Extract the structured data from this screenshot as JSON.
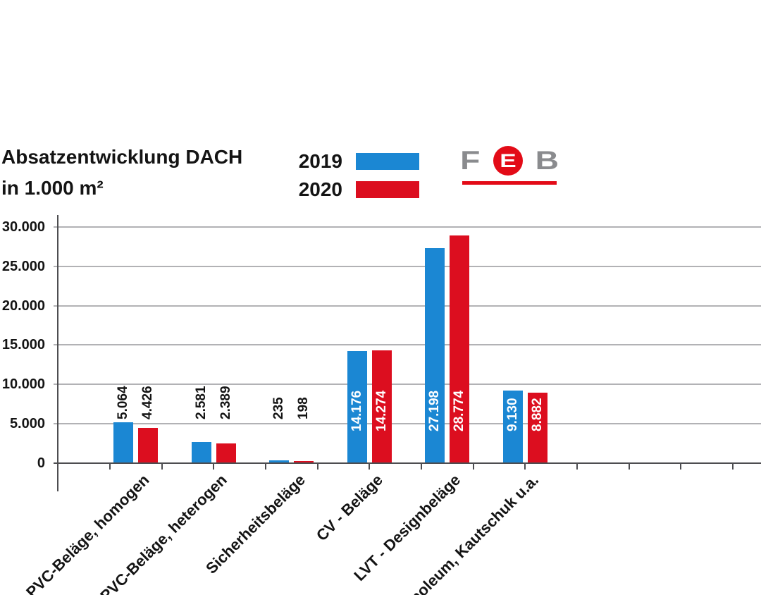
{
  "title": {
    "line1": "Absatzentwicklung DACH",
    "line2": "in 1.000 m²"
  },
  "legend": {
    "items": [
      {
        "label": "2019"
      },
      {
        "label": "2020"
      }
    ]
  },
  "logo": {
    "f": "F",
    "e": "E",
    "b": "B",
    "gray": "#8a8b8e",
    "red": "#e30b17"
  },
  "chart_data": {
    "type": "bar",
    "title": "Absatzentwicklung DACH",
    "subtitle": "in 1.000 m²",
    "unit": "1.000 m²",
    "categories": [
      "PVC-Beläge, homogen",
      "PVC-Beläge, heterogen",
      "Sicherheitsbeläge",
      "CV - Beläge",
      "LVT - Designbeläge",
      "Linoleum, Kautschuk u.a."
    ],
    "series": [
      {
        "name": "2019",
        "color": "#1b87d3",
        "values": [
          5064,
          2581,
          235,
          14176,
          27198,
          9130
        ],
        "value_labels": [
          "5.064",
          "2.581",
          "235",
          "14.176",
          "27.198",
          "9.130"
        ]
      },
      {
        "name": "2020",
        "color": "#dc0e1f",
        "values": [
          4426,
          2389,
          198,
          14274,
          28774,
          8882
        ],
        "value_labels": [
          "4.426",
          "2.389",
          "198",
          "14.274",
          "28.774",
          "8.882"
        ]
      }
    ],
    "ylim": [
      0,
      30000
    ],
    "yticks": [
      {
        "label": "30.000",
        "value": 30000
      },
      {
        "label": "25.000",
        "value": 25000
      },
      {
        "label": "20.000",
        "value": 20000
      },
      {
        "label": "15.000",
        "value": 15000
      },
      {
        "label": "10.000",
        "value": 10000
      },
      {
        "label": "5.000",
        "value": 5000
      },
      {
        "label": "0",
        "value": 0
      }
    ],
    "grid": "horizontal",
    "legend_position": "top"
  }
}
